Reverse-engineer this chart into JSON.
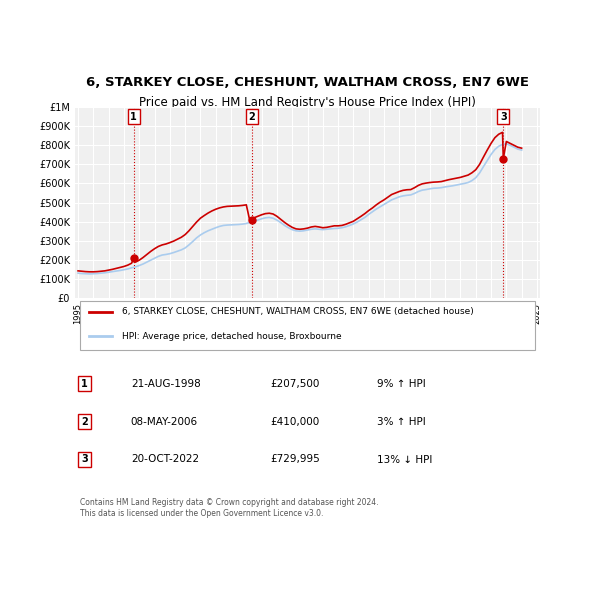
{
  "title_line1": "6, STARKEY CLOSE, CHESHUNT, WALTHAM CROSS, EN7 6WE",
  "title_line2": "Price paid vs. HM Land Registry's House Price Index (HPI)",
  "background_color": "#ffffff",
  "plot_bg_color": "#f0f0f0",
  "grid_color": "#ffffff",
  "red_line_color": "#cc0000",
  "blue_line_color": "#aaccee",
  "sale_dot_color": "#cc0000",
  "ylim": [
    0,
    1000000
  ],
  "yticks": [
    0,
    100000,
    200000,
    300000,
    400000,
    500000,
    600000,
    700000,
    800000,
    900000,
    1000000
  ],
  "ytick_labels": [
    "£0",
    "£100K",
    "£200K",
    "£300K",
    "£400K",
    "£500K",
    "£600K",
    "£700K",
    "£800K",
    "£900K",
    "£1M"
  ],
  "x_start_year": 1995,
  "x_end_year": 2025,
  "sale_points": [
    {
      "year": 1998.64,
      "price": 207500,
      "label": "1"
    },
    {
      "year": 2006.36,
      "price": 410000,
      "label": "2"
    },
    {
      "year": 2022.8,
      "price": 729995,
      "label": "3"
    }
  ],
  "legend_line1": "6, STARKEY CLOSE, CHESHUNT, WALTHAM CROSS, EN7 6WE (detached house)",
  "legend_line2": "HPI: Average price, detached house, Broxbourne",
  "table_rows": [
    {
      "num": "1",
      "date": "21-AUG-1998",
      "price": "£207,500",
      "pct": "9% ↑ HPI"
    },
    {
      "num": "2",
      "date": "08-MAY-2006",
      "price": "£410,000",
      "pct": "3% ↑ HPI"
    },
    {
      "num": "3",
      "date": "20-OCT-2022",
      "price": "£729,995",
      "pct": "13% ↓ HPI"
    }
  ],
  "footnote": "Contains HM Land Registry data © Crown copyright and database right 2024.\nThis data is licensed under the Open Government Licence v3.0.",
  "hpi_data_years": [
    1995.0,
    1995.25,
    1995.5,
    1995.75,
    1996.0,
    1996.25,
    1996.5,
    1996.75,
    1997.0,
    1997.25,
    1997.5,
    1997.75,
    1998.0,
    1998.25,
    1998.5,
    1998.75,
    1999.0,
    1999.25,
    1999.5,
    1999.75,
    2000.0,
    2000.25,
    2000.5,
    2000.75,
    2001.0,
    2001.25,
    2001.5,
    2001.75,
    2002.0,
    2002.25,
    2002.5,
    2002.75,
    2003.0,
    2003.25,
    2003.5,
    2003.75,
    2004.0,
    2004.25,
    2004.5,
    2004.75,
    2005.0,
    2005.25,
    2005.5,
    2005.75,
    2006.0,
    2006.25,
    2006.5,
    2006.75,
    2007.0,
    2007.25,
    2007.5,
    2007.75,
    2008.0,
    2008.25,
    2008.5,
    2008.75,
    2009.0,
    2009.25,
    2009.5,
    2009.75,
    2010.0,
    2010.25,
    2010.5,
    2010.75,
    2011.0,
    2011.25,
    2011.5,
    2011.75,
    2012.0,
    2012.25,
    2012.5,
    2012.75,
    2013.0,
    2013.25,
    2013.5,
    2013.75,
    2014.0,
    2014.25,
    2014.5,
    2014.75,
    2015.0,
    2015.25,
    2015.5,
    2015.75,
    2016.0,
    2016.25,
    2016.5,
    2016.75,
    2017.0,
    2017.25,
    2017.5,
    2017.75,
    2018.0,
    2018.25,
    2018.5,
    2018.75,
    2019.0,
    2019.25,
    2019.5,
    2019.75,
    2020.0,
    2020.25,
    2020.5,
    2020.75,
    2021.0,
    2021.25,
    2021.5,
    2021.75,
    2022.0,
    2022.25,
    2022.5,
    2022.75,
    2023.0,
    2023.25,
    2023.5,
    2023.75,
    2024.0
  ],
  "hpi_values": [
    130000,
    128000,
    127000,
    126000,
    127000,
    128000,
    130000,
    132000,
    135000,
    138000,
    141000,
    144000,
    148000,
    152000,
    158000,
    163000,
    170000,
    178000,
    188000,
    198000,
    208000,
    218000,
    225000,
    228000,
    232000,
    238000,
    245000,
    252000,
    262000,
    278000,
    296000,
    315000,
    330000,
    342000,
    352000,
    360000,
    368000,
    375000,
    380000,
    382000,
    383000,
    384000,
    385000,
    387000,
    390000,
    396000,
    402000,
    408000,
    415000,
    420000,
    422000,
    418000,
    408000,
    395000,
    380000,
    368000,
    358000,
    352000,
    350000,
    352000,
    356000,
    360000,
    362000,
    360000,
    358000,
    360000,
    362000,
    364000,
    365000,
    368000,
    373000,
    380000,
    388000,
    398000,
    410000,
    422000,
    438000,
    452000,
    466000,
    478000,
    490000,
    502000,
    514000,
    522000,
    530000,
    535000,
    538000,
    540000,
    548000,
    558000,
    565000,
    568000,
    572000,
    575000,
    576000,
    578000,
    582000,
    585000,
    588000,
    592000,
    596000,
    600000,
    605000,
    615000,
    630000,
    655000,
    688000,
    720000,
    752000,
    778000,
    795000,
    805000,
    808000,
    800000,
    790000,
    780000,
    775000
  ],
  "red_data_years": [
    1995.0,
    1995.25,
    1995.5,
    1995.75,
    1996.0,
    1996.25,
    1996.5,
    1996.75,
    1997.0,
    1997.25,
    1997.5,
    1997.75,
    1998.0,
    1998.25,
    1998.5,
    1998.64,
    1998.75,
    1999.0,
    1999.25,
    1999.5,
    1999.75,
    2000.0,
    2000.25,
    2000.5,
    2000.75,
    2001.0,
    2001.25,
    2001.5,
    2001.75,
    2002.0,
    2002.25,
    2002.5,
    2002.75,
    2003.0,
    2003.25,
    2003.5,
    2003.75,
    2004.0,
    2004.25,
    2004.5,
    2004.75,
    2005.0,
    2005.25,
    2005.5,
    2005.75,
    2006.0,
    2006.25,
    2006.36,
    2006.5,
    2006.75,
    2007.0,
    2007.25,
    2007.5,
    2007.75,
    2008.0,
    2008.25,
    2008.5,
    2008.75,
    2009.0,
    2009.25,
    2009.5,
    2009.75,
    2010.0,
    2010.25,
    2010.5,
    2010.75,
    2011.0,
    2011.25,
    2011.5,
    2011.75,
    2012.0,
    2012.25,
    2012.5,
    2012.75,
    2013.0,
    2013.25,
    2013.5,
    2013.75,
    2014.0,
    2014.25,
    2014.5,
    2014.75,
    2015.0,
    2015.25,
    2015.5,
    2015.75,
    2016.0,
    2016.25,
    2016.5,
    2016.75,
    2017.0,
    2017.25,
    2017.5,
    2017.75,
    2018.0,
    2018.25,
    2018.5,
    2018.75,
    2019.0,
    2019.25,
    2019.5,
    2019.75,
    2020.0,
    2020.25,
    2020.5,
    2020.75,
    2021.0,
    2021.25,
    2021.5,
    2021.75,
    2022.0,
    2022.25,
    2022.5,
    2022.75,
    2022.8,
    2023.0,
    2023.25,
    2023.5,
    2023.75,
    2024.0
  ],
  "red_values": [
    142000,
    140000,
    138000,
    137000,
    137000,
    138000,
    140000,
    142000,
    146000,
    150000,
    155000,
    160000,
    165000,
    172000,
    182000,
    207500,
    188000,
    198000,
    212000,
    228000,
    244000,
    258000,
    270000,
    278000,
    283000,
    290000,
    298000,
    308000,
    318000,
    332000,
    352000,
    375000,
    398000,
    418000,
    432000,
    445000,
    456000,
    465000,
    472000,
    477000,
    480000,
    481000,
    482000,
    483000,
    485000,
    488000,
    397000,
    410000,
    420000,
    428000,
    436000,
    442000,
    444000,
    440000,
    428000,
    412000,
    396000,
    382000,
    370000,
    362000,
    360000,
    362000,
    366000,
    372000,
    375000,
    372000,
    368000,
    370000,
    374000,
    378000,
    378000,
    380000,
    386000,
    394000,
    402000,
    415000,
    428000,
    442000,
    458000,
    472000,
    488000,
    502000,
    514000,
    528000,
    542000,
    550000,
    558000,
    564000,
    567000,
    568000,
    578000,
    590000,
    598000,
    602000,
    605000,
    607000,
    608000,
    610000,
    615000,
    620000,
    624000,
    628000,
    632000,
    638000,
    644000,
    656000,
    672000,
    700000,
    738000,
    775000,
    810000,
    840000,
    858000,
    868000,
    729995,
    820000,
    810000,
    800000,
    790000,
    785000
  ]
}
